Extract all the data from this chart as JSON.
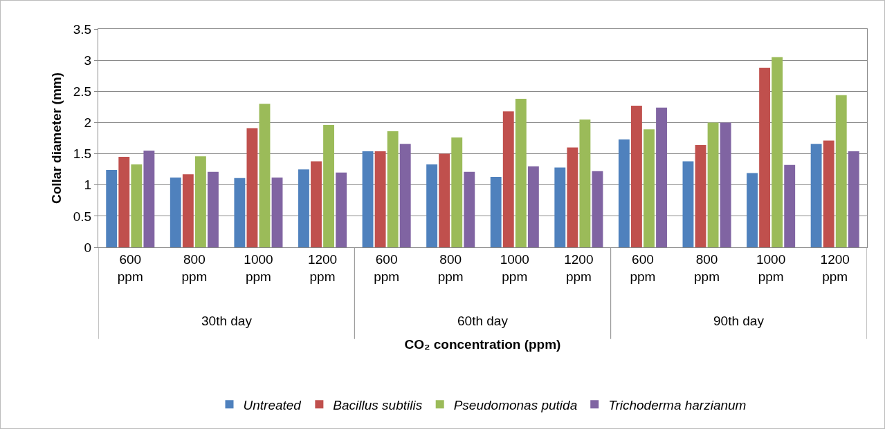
{
  "chart_data": {
    "type": "bar",
    "xlabel": "CO₂ concentration (ppm)",
    "ylabel": "Collar diameter (mm)",
    "categories": [
      "600 ppm",
      "800 ppm",
      "1000 ppm",
      "1200 ppm",
      "600 ppm",
      "800 ppm",
      "1000 ppm",
      "1200 ppm",
      "600 ppm",
      "800 ppm",
      "1000 ppm",
      "1200 ppm"
    ],
    "annotations": [
      "30th day",
      "60th day",
      "90th day"
    ],
    "series": [
      {
        "name": "Untreated",
        "color": "#4f81bd",
        "values": [
          1.24,
          1.12,
          1.11,
          1.25,
          1.54,
          1.33,
          1.13,
          1.28,
          1.73,
          1.38,
          1.19,
          1.66
        ]
      },
      {
        "name": "Bacillus subtilis",
        "color": "#c0504d",
        "values": [
          1.45,
          1.17,
          1.91,
          1.38,
          1.54,
          1.5,
          2.18,
          1.6,
          2.27,
          1.64,
          2.88,
          1.71
        ]
      },
      {
        "name": "Pseudomonas putida",
        "color": "#9bbb59",
        "values": [
          1.33,
          1.46,
          2.3,
          1.96,
          1.86,
          1.76,
          2.38,
          2.05,
          1.89,
          2.0,
          3.05,
          2.44
        ]
      },
      {
        "name": "Trichoderma harzianum",
        "color": "#8064a2",
        "values": [
          1.55,
          1.21,
          1.12,
          1.2,
          1.66,
          1.21,
          1.3,
          1.22,
          2.24,
          2.0,
          1.32,
          1.54
        ]
      }
    ],
    "ylim": [
      0,
      3.5
    ],
    "yticks": [
      0,
      0.5,
      1,
      1.5,
      2,
      2.5,
      3,
      3.5
    ],
    "grid": "y",
    "legend": "bottom"
  }
}
